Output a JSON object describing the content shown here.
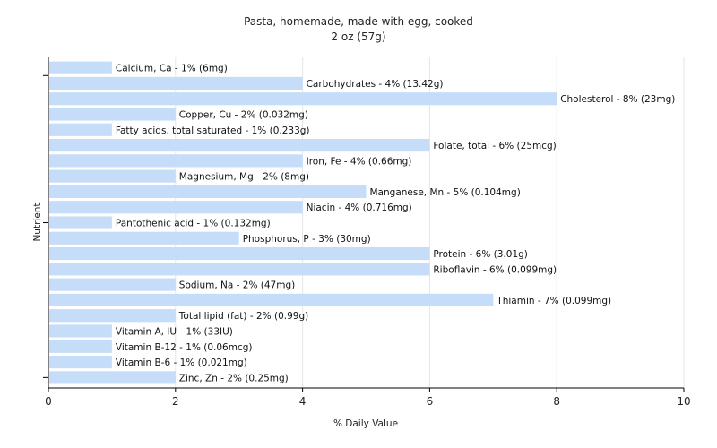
{
  "chart_data": {
    "type": "bar",
    "orientation": "horizontal",
    "title": "Pasta, homemade, made with egg, cooked",
    "subtitle": "2 oz (57g)",
    "xlabel": "% Daily Value",
    "ylabel": "Nutrient",
    "xlim": [
      0,
      10
    ],
    "xticks": [
      "0",
      "2",
      "4",
      "6",
      "8",
      "10"
    ],
    "grid": true,
    "bar_color": "#c6ddfa",
    "categories": [
      "Calcium, Ca",
      "Carbohydrates",
      "Cholesterol",
      "Copper, Cu",
      "Fatty acids, total saturated",
      "Folate, total",
      "Iron, Fe",
      "Magnesium, Mg",
      "Manganese, Mn",
      "Niacin",
      "Pantothenic acid",
      "Phosphorus, P",
      "Protein",
      "Riboflavin",
      "Sodium, Na",
      "Thiamin",
      "Total lipid (fat)",
      "Vitamin A, IU",
      "Vitamin B-12",
      "Vitamin B-6",
      "Zinc, Zn"
    ],
    "values": [
      1,
      4,
      8,
      2,
      1,
      6,
      4,
      2,
      5,
      4,
      1,
      3,
      6,
      6,
      2,
      7,
      2,
      1,
      1,
      1,
      2
    ],
    "labels": [
      "Calcium, Ca - 1% (6mg)",
      "Carbohydrates - 4% (13.42g)",
      "Cholesterol - 8% (23mg)",
      "Copper, Cu - 2% (0.032mg)",
      "Fatty acids, total saturated - 1% (0.233g)",
      "Folate, total - 6% (25mcg)",
      "Iron, Fe - 4% (0.66mg)",
      "Magnesium, Mg - 2% (8mg)",
      "Manganese, Mn - 5% (0.104mg)",
      "Niacin - 4% (0.716mg)",
      "Pantothenic acid - 1% (0.132mg)",
      "Phosphorus, P - 3% (30mg)",
      "Protein - 6% (3.01g)",
      "Riboflavin - 6% (0.099mg)",
      "Sodium, Na - 2% (47mg)",
      "Thiamin - 7% (0.099mg)",
      "Total lipid (fat) - 2% (0.99g)",
      "Vitamin A, IU - 1% (33IU)",
      "Vitamin B-12 - 1% (0.06mcg)",
      "Vitamin B-6 - 1% (0.021mg)",
      "Zinc, Zn - 2% (0.25mg)"
    ]
  }
}
